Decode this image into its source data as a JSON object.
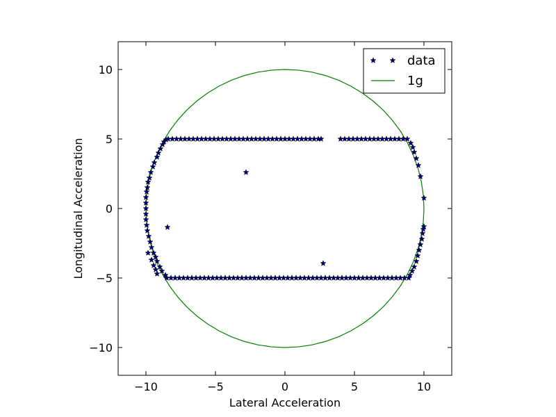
{
  "chart_data": {
    "type": "scatter",
    "title": "",
    "xlabel": "Lateral Acceleration",
    "ylabel": "Longitudinal Acceleration",
    "xlim": [
      -12,
      12
    ],
    "ylim": [
      -12,
      12
    ],
    "xticks": [
      -10,
      -5,
      0,
      5,
      10
    ],
    "yticks": [
      -10,
      -5,
      0,
      5,
      10
    ],
    "xtick_labels": [
      "−10",
      "−5",
      "0",
      "5",
      "10"
    ],
    "ytick_labels": [
      "−10",
      "−5",
      "0",
      "5",
      "10"
    ],
    "grid": false,
    "legend": {
      "placement": "top-right",
      "entries": [
        "data",
        "1g"
      ]
    },
    "series": [
      {
        "name": "data",
        "marker": "star",
        "color": "#00007f",
        "points": [
          [
            -10.0,
            0.0
          ],
          [
            -10.0,
            0.4
          ],
          [
            -10.0,
            -0.4
          ],
          [
            -10.0,
            0.8
          ],
          [
            -10.0,
            -0.8
          ],
          [
            -9.95,
            1.2
          ],
          [
            -9.95,
            -1.2
          ],
          [
            -9.9,
            1.5
          ],
          [
            -9.9,
            -1.6
          ],
          [
            -9.85,
            1.9
          ],
          [
            -9.8,
            -2.0
          ],
          [
            -9.75,
            2.2
          ],
          [
            -9.7,
            -2.4
          ],
          [
            -9.65,
            2.6
          ],
          [
            -9.6,
            -2.8
          ],
          [
            -9.5,
            3.0
          ],
          [
            -9.45,
            -3.2
          ],
          [
            -9.4,
            3.3
          ],
          [
            -9.3,
            -3.5
          ],
          [
            -9.2,
            3.7
          ],
          [
            -9.2,
            -3.8
          ],
          [
            -9.1,
            4.0
          ],
          [
            -9.0,
            -4.2
          ],
          [
            -8.95,
            4.3
          ],
          [
            -8.85,
            -4.5
          ],
          [
            -8.8,
            4.6
          ],
          [
            -8.7,
            4.8
          ],
          [
            -8.6,
            -4.8
          ],
          [
            -8.55,
            4.95
          ],
          [
            -8.5,
            -5.0
          ],
          [
            -9.85,
            -3.2
          ],
          [
            -9.6,
            -3.7
          ],
          [
            -9.45,
            -4.1
          ],
          [
            -9.3,
            -4.4
          ],
          [
            -9.2,
            -4.7
          ],
          [
            -8.4,
            5.0
          ],
          [
            -8.1,
            5.0
          ],
          [
            -7.8,
            5.0
          ],
          [
            -7.5,
            5.0
          ],
          [
            -7.2,
            5.0
          ],
          [
            -6.9,
            5.0
          ],
          [
            -6.6,
            5.0
          ],
          [
            -6.3,
            5.0
          ],
          [
            -6.0,
            5.0
          ],
          [
            -5.7,
            5.0
          ],
          [
            -5.4,
            5.0
          ],
          [
            -5.1,
            5.0
          ],
          [
            -4.8,
            5.0
          ],
          [
            -4.5,
            5.0
          ],
          [
            -4.2,
            5.0
          ],
          [
            -3.9,
            5.0
          ],
          [
            -3.6,
            5.0
          ],
          [
            -3.3,
            5.0
          ],
          [
            -3.0,
            5.0
          ],
          [
            -2.7,
            5.0
          ],
          [
            -2.4,
            5.0
          ],
          [
            -2.1,
            5.0
          ],
          [
            -1.8,
            5.0
          ],
          [
            -1.5,
            5.0
          ],
          [
            -1.2,
            5.0
          ],
          [
            -0.9,
            5.0
          ],
          [
            -0.6,
            5.0
          ],
          [
            -0.3,
            5.0
          ],
          [
            0.0,
            5.0
          ],
          [
            0.3,
            5.0
          ],
          [
            0.6,
            5.0
          ],
          [
            0.9,
            5.0
          ],
          [
            1.2,
            5.0
          ],
          [
            1.5,
            5.0
          ],
          [
            1.8,
            5.0
          ],
          [
            2.1,
            5.0
          ],
          [
            2.4,
            5.0
          ],
          [
            2.6,
            5.0
          ],
          [
            4.0,
            5.0
          ],
          [
            4.3,
            5.0
          ],
          [
            4.6,
            5.0
          ],
          [
            4.9,
            5.0
          ],
          [
            5.2,
            5.0
          ],
          [
            5.5,
            5.0
          ],
          [
            5.8,
            5.0
          ],
          [
            6.1,
            5.0
          ],
          [
            6.4,
            5.0
          ],
          [
            6.7,
            5.0
          ],
          [
            7.0,
            5.0
          ],
          [
            7.3,
            5.0
          ],
          [
            7.6,
            5.0
          ],
          [
            7.9,
            5.0
          ],
          [
            8.2,
            5.0
          ],
          [
            8.5,
            5.0
          ],
          [
            8.8,
            5.0
          ],
          [
            9.05,
            4.7
          ],
          [
            9.2,
            4.4
          ],
          [
            9.3,
            4.05
          ],
          [
            9.45,
            3.6
          ],
          [
            9.6,
            3.1
          ],
          [
            9.75,
            2.3
          ],
          [
            10.0,
            0.75
          ],
          [
            -8.2,
            -5.0
          ],
          [
            -7.9,
            -5.0
          ],
          [
            -7.6,
            -5.0
          ],
          [
            -7.3,
            -5.0
          ],
          [
            -7.0,
            -5.0
          ],
          [
            -6.7,
            -5.0
          ],
          [
            -6.4,
            -5.0
          ],
          [
            -6.1,
            -5.0
          ],
          [
            -5.8,
            -5.0
          ],
          [
            -5.5,
            -5.0
          ],
          [
            -5.2,
            -5.0
          ],
          [
            -4.9,
            -5.0
          ],
          [
            -4.6,
            -5.0
          ],
          [
            -4.3,
            -5.0
          ],
          [
            -4.0,
            -5.0
          ],
          [
            -3.7,
            -5.0
          ],
          [
            -3.4,
            -5.0
          ],
          [
            -3.1,
            -5.0
          ],
          [
            -2.8,
            -5.0
          ],
          [
            -2.5,
            -5.0
          ],
          [
            -2.2,
            -5.0
          ],
          [
            -1.9,
            -5.0
          ],
          [
            -1.6,
            -5.0
          ],
          [
            -1.3,
            -5.0
          ],
          [
            -1.0,
            -5.0
          ],
          [
            -0.7,
            -5.0
          ],
          [
            -0.4,
            -5.0
          ],
          [
            -0.1,
            -5.0
          ],
          [
            0.2,
            -5.0
          ],
          [
            0.5,
            -5.0
          ],
          [
            0.8,
            -5.0
          ],
          [
            1.1,
            -5.0
          ],
          [
            1.4,
            -5.0
          ],
          [
            1.7,
            -5.0
          ],
          [
            2.0,
            -5.0
          ],
          [
            2.3,
            -5.0
          ],
          [
            2.6,
            -5.0
          ],
          [
            2.9,
            -5.0
          ],
          [
            3.2,
            -5.0
          ],
          [
            3.5,
            -5.0
          ],
          [
            3.8,
            -5.0
          ],
          [
            4.1,
            -5.0
          ],
          [
            4.4,
            -5.0
          ],
          [
            4.7,
            -5.0
          ],
          [
            5.0,
            -5.0
          ],
          [
            5.3,
            -5.0
          ],
          [
            5.6,
            -5.0
          ],
          [
            5.9,
            -5.0
          ],
          [
            6.2,
            -5.0
          ],
          [
            6.5,
            -5.0
          ],
          [
            6.8,
            -5.0
          ],
          [
            7.1,
            -5.0
          ],
          [
            7.4,
            -5.0
          ],
          [
            7.7,
            -5.0
          ],
          [
            8.0,
            -5.0
          ],
          [
            8.3,
            -5.0
          ],
          [
            8.6,
            -5.0
          ],
          [
            8.9,
            -5.0
          ],
          [
            9.0,
            -4.8
          ],
          [
            9.15,
            -4.5
          ],
          [
            9.3,
            -4.2
          ],
          [
            9.45,
            -3.8
          ],
          [
            9.55,
            -3.4
          ],
          [
            9.65,
            -3.0
          ],
          [
            9.75,
            -2.6
          ],
          [
            9.85,
            -2.2
          ],
          [
            9.9,
            -1.8
          ],
          [
            9.95,
            -1.5
          ],
          [
            10.0,
            -1.3
          ],
          [
            -2.8,
            2.6
          ],
          [
            -8.45,
            -1.35
          ],
          [
            2.75,
            -3.95
          ]
        ]
      },
      {
        "name": "1g",
        "type": "line",
        "color": "#007f00",
        "shape": "circle",
        "center": [
          0,
          0
        ],
        "radius": 10
      }
    ]
  }
}
